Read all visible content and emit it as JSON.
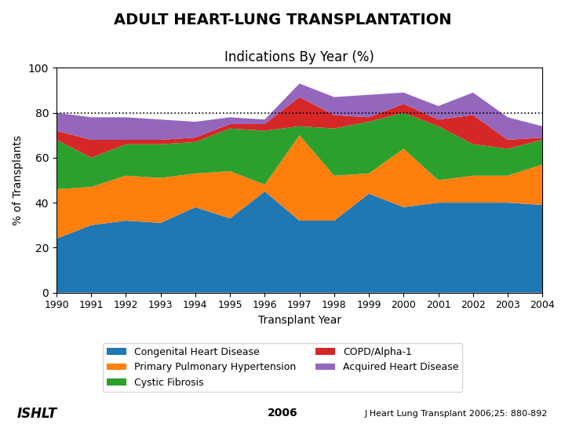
{
  "chart_data": {
    "type": "area",
    "stacked": true,
    "title": "ADULT HEART-LUNG TRANSPLANTATION",
    "subtitle": "Indications By Year (%)",
    "x_label": "Transplant Year",
    "y_label": "% of Transplants",
    "x": [
      1990,
      1991,
      1992,
      1993,
      1994,
      1995,
      1996,
      1997,
      1998,
      1999,
      2000,
      2001,
      2002,
      2003,
      2004
    ],
    "series": [
      {
        "name": "Congenital Heart Disease",
        "values": [
          24,
          30,
          32,
          31,
          38,
          33,
          45,
          32,
          32,
          44,
          38,
          40,
          40,
          40,
          39
        ]
      },
      {
        "name": "Primary Pulmonary Hypertension",
        "values": [
          22,
          17,
          20,
          20,
          15,
          21,
          3,
          38,
          20,
          9,
          26,
          10,
          12,
          12,
          18
        ]
      },
      {
        "name": "Cystic Fibrosis",
        "values": [
          22,
          13,
          14,
          15,
          14,
          19,
          24,
          4,
          21,
          23,
          16,
          24,
          14,
          12,
          11
        ]
      },
      {
        "name": "COPD/Alpha-1",
        "values": [
          4,
          8,
          2,
          2,
          2,
          2,
          3,
          13,
          6,
          2,
          4,
          3,
          13,
          4,
          1
        ]
      },
      {
        "name": "Acquired Heart Disease",
        "values": [
          8,
          10,
          10,
          9,
          7,
          3,
          2,
          6,
          8,
          10,
          5,
          6,
          10,
          10,
          5
        ]
      }
    ],
    "xlim": [
      1990,
      2004
    ],
    "xticks": [
      1990,
      1991,
      1992,
      1993,
      1994,
      1995,
      1996,
      1997,
      1998,
      1999,
      2000,
      2001,
      2002,
      2003,
      2004
    ],
    "ylim": [
      0,
      100
    ],
    "yticks": [
      0,
      20,
      40,
      60,
      80,
      100
    ],
    "reference_lines": [
      80
    ],
    "legend": "lower center",
    "annotations": [
      "ISHLT",
      "2006",
      "J Heart Lung Transplant 2006;25: 880-892"
    ]
  }
}
